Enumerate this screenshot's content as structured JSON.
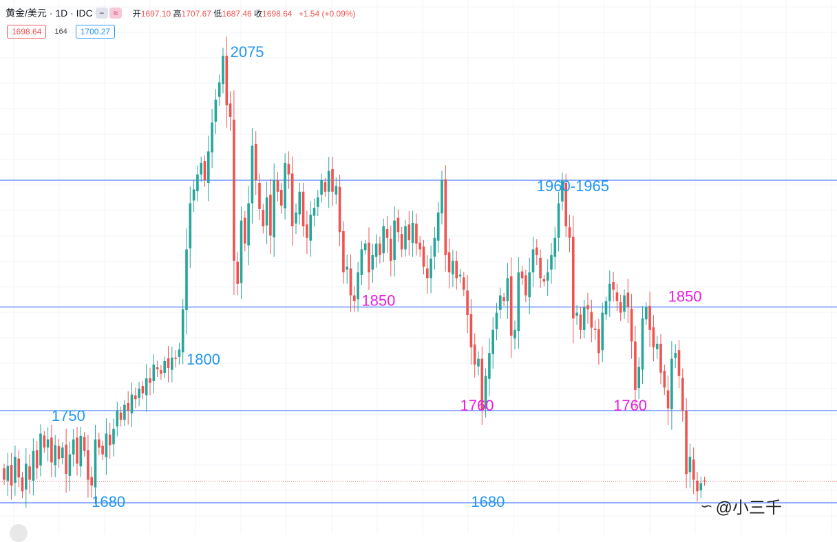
{
  "header": {
    "symbol": "黄金/美元 · 1D · IDC",
    "open_label": "开",
    "open": "1697.10",
    "high_label": "高",
    "high": "1707.67",
    "low_label": "低",
    "low": "1687.46",
    "close_label": "收",
    "close": "1698.64",
    "change": "+1.54 (+0.09%)",
    "bid": "1698.64",
    "spread": "164",
    "ask": "1700.27",
    "toggle_icon": "minus-icon",
    "compare_icon": "approx-icon"
  },
  "watermark": {
    "text": "@小三千",
    "icon": "zhihu-logo-icon"
  },
  "colors": {
    "up": "#26a69a",
    "down": "#ef5350",
    "level_line": "#2962ff",
    "label_blue": "#2196f3",
    "label_magenta": "#e91ee0",
    "last_price_line": "#ef5350"
  },
  "chart_data": {
    "type": "candlestick",
    "y_range": [
      1670,
      2090
    ],
    "x_range": [
      0,
      187
    ],
    "grid": true,
    "last_price": 1698.64,
    "levels": [
      1960,
      1850,
      1760,
      1680
    ],
    "annotations": [
      {
        "text": "2075",
        "x": 62,
        "y": 2075,
        "color": "blue"
      },
      {
        "text": "1750",
        "x": 13,
        "y": 1750,
        "color": "blue"
      },
      {
        "text": "1800",
        "x": 50,
        "y": 1800,
        "color": "blue"
      },
      {
        "text": "1680",
        "x": 24,
        "y": 1680,
        "color": "blue"
      },
      {
        "text": "1680",
        "x": 128,
        "y": 1680,
        "color": "blue"
      },
      {
        "text": "1960-1965",
        "x": 146,
        "y": 1960,
        "color": "blue"
      },
      {
        "text": "1850",
        "x": 98,
        "y": 1850,
        "color": "magenta"
      },
      {
        "text": "1760",
        "x": 125,
        "y": 1760,
        "color": "magenta"
      },
      {
        "text": "1760",
        "x": 167,
        "y": 1760,
        "color": "magenta"
      },
      {
        "text": "1850",
        "x": 182,
        "y": 1850,
        "color": "magenta"
      }
    ],
    "closes": [
      1700,
      1712,
      1695,
      1720,
      1702,
      1690,
      1714,
      1700,
      1725,
      1710,
      1740,
      1728,
      1735,
      1715,
      1730,
      1718,
      1728,
      1705,
      1722,
      1735,
      1714,
      1738,
      1725,
      1700,
      1695,
      1735,
      1728,
      1722,
      1740,
      1730,
      1744,
      1760,
      1752,
      1765,
      1760,
      1774,
      1770,
      1779,
      1775,
      1788,
      1784,
      1800,
      1796,
      1792,
      1803,
      1797,
      1806,
      1805,
      1813,
      1848,
      1900,
      1940,
      1952,
      1965,
      1975,
      1960,
      1985,
      2010,
      2030,
      2045,
      2068,
      2025,
      2015,
      1890,
      1870,
      1925,
      1905,
      1940,
      1990,
      1960,
      1935,
      1920,
      1945,
      1912,
      1960,
      1950,
      1938,
      1975,
      1965,
      1920,
      1932,
      1950,
      1920,
      1910,
      1930,
      1936,
      1945,
      1960,
      1950,
      1968,
      1950,
      1955,
      1915,
      1880,
      1885,
      1860,
      1855,
      1880,
      1900,
      1905,
      1880,
      1895,
      1905,
      1895,
      1920,
      1910,
      1890,
      1925,
      1915,
      1900,
      1920,
      1908,
      1923,
      1905,
      1900,
      1885,
      1875,
      1892,
      1910,
      1932,
      1960,
      1895,
      1880,
      1890,
      1875,
      1878,
      1865,
      1843,
      1815,
      1800,
      1805,
      1760,
      1790,
      1810,
      1830,
      1845,
      1860,
      1855,
      1875,
      1825,
      1830,
      1880,
      1875,
      1860,
      1880,
      1900,
      1895,
      1875,
      1872,
      1880,
      1895,
      1910,
      1940,
      1960,
      1920,
      1910,
      1840,
      1845,
      1830,
      1850,
      1848,
      1832,
      1830,
      1810,
      1845,
      1855,
      1870,
      1865,
      1855,
      1845,
      1860,
      1850,
      1820,
      1778,
      1798,
      1840,
      1850,
      1830,
      1815,
      1818,
      1793,
      1780,
      1762,
      1805,
      1810,
      1790,
      1760,
      1705,
      1720,
      1700,
      1690,
      1697,
      1698.64
    ]
  }
}
